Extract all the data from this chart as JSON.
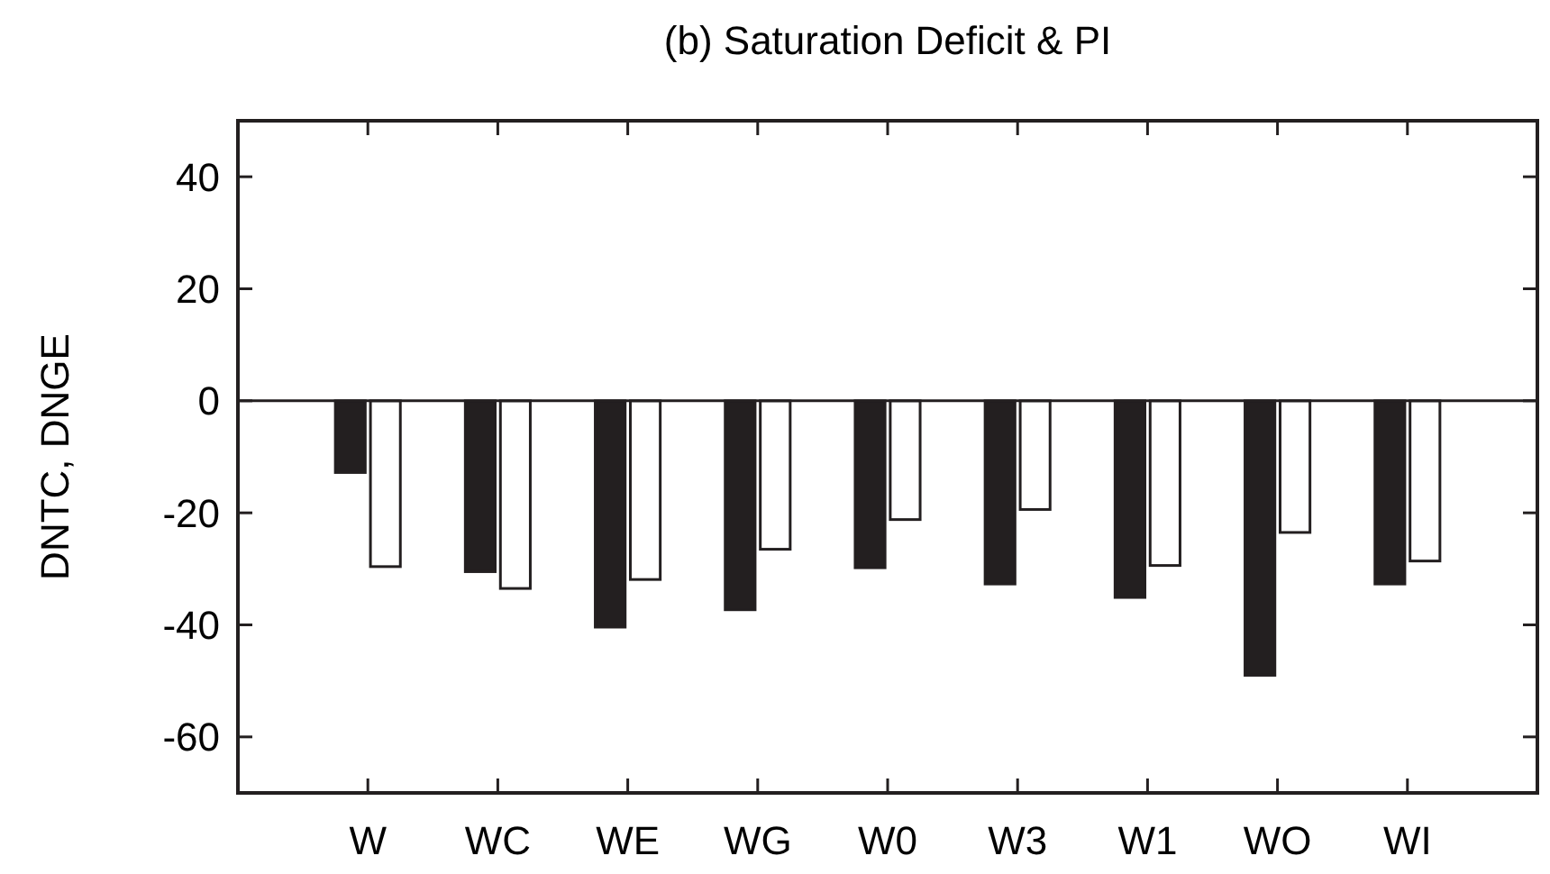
{
  "chart_data": {
    "type": "bar",
    "title": "(b) Saturation Deficit & PI",
    "ylabel": "DNTC, DNGE",
    "categories": [
      "W",
      "WC",
      "WE",
      "WG",
      "W0",
      "W3",
      "W1",
      "WO",
      "WI"
    ],
    "series": [
      {
        "color": "#231f20",
        "values": [
          -12.8,
          -30.5,
          -40.4,
          -37.3,
          -29.8,
          -32.7,
          -35.1,
          -49,
          -32.7
        ]
      },
      {
        "color": "#ffffff",
        "values": [
          -29.6,
          -33.5,
          -31.9,
          -26.5,
          -21.2,
          -19.4,
          -29.4,
          -23.5,
          -28.6
        ]
      }
    ],
    "ylim": [
      -70,
      50
    ],
    "yticks": [
      -60,
      -40,
      -20,
      0,
      20,
      40
    ]
  }
}
